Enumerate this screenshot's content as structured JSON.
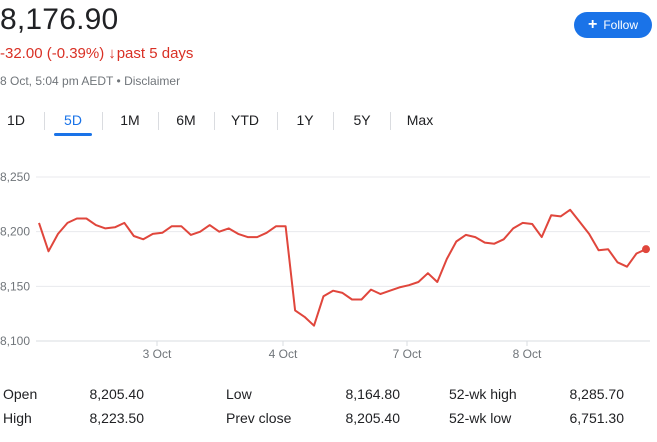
{
  "quote": {
    "price": "8,176.90",
    "change": "-32.00 (-0.39%)",
    "change_arrow": "↓",
    "period": "past 5 days",
    "timestamp": "8 Oct, 5:04 pm AEDT",
    "bullet": "•",
    "disclaimer": "Disclaimer"
  },
  "follow_button": {
    "label": "Follow",
    "icon": "plus-icon",
    "color": "#1a73e8"
  },
  "tabs": [
    {
      "label": "1D",
      "active": false
    },
    {
      "label": "5D",
      "active": true
    },
    {
      "label": "1M",
      "active": false
    },
    {
      "label": "6M",
      "active": false
    },
    {
      "label": "YTD",
      "active": false
    },
    {
      "label": "1Y",
      "active": false
    },
    {
      "label": "5Y",
      "active": false
    },
    {
      "label": "Max",
      "active": false
    }
  ],
  "colors": {
    "negative": "#d93025",
    "accent": "#1a73e8",
    "line": "#e0463c",
    "grid": "#e8eaed",
    "muted": "#70757a"
  },
  "chart_data": {
    "type": "line",
    "y_ticks": [
      "8,250",
      "8,200",
      "8,150",
      "8,100"
    ],
    "ylim": [
      8100,
      8250
    ],
    "x_ticks": [
      "3 Oct",
      "4 Oct",
      "7 Oct",
      "8 Oct"
    ],
    "grid": true,
    "series": [
      {
        "values": [
          8208,
          8182,
          8198,
          8208,
          8212,
          8212,
          8206,
          8203,
          8204,
          8208,
          8196,
          8193,
          8198,
          8199,
          8205,
          8205,
          8197,
          8200,
          8206,
          8200,
          8203,
          8198,
          8195,
          8195,
          8199,
          8205,
          8205,
          8128,
          8122,
          8114,
          8141,
          8146,
          8144,
          8138,
          8138,
          8147,
          8143,
          8146,
          8149,
          8151,
          8154,
          8162,
          8154,
          8175,
          8191,
          8197,
          8195,
          8190,
          8189,
          8193,
          8203,
          8208,
          8207,
          8195,
          8215,
          8214,
          8220,
          8209,
          8198,
          8183,
          8184,
          8172,
          8168,
          8180,
          8184
        ]
      }
    ],
    "last_point_marker": true
  },
  "stats": [
    {
      "label": "Open",
      "value": "8,205.40"
    },
    {
      "label": "High",
      "value": "8,223.50"
    },
    {
      "label": "Low",
      "value": "8,164.80"
    },
    {
      "label": "Prev close",
      "value": "8,205.40"
    },
    {
      "label": "52-wk high",
      "value": "8,285.70"
    },
    {
      "label": "52-wk low",
      "value": "6,751.30"
    }
  ]
}
